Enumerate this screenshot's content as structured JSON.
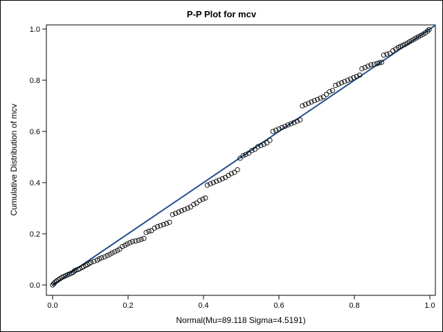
{
  "chart_data": {
    "type": "scatter",
    "title": "P-P Plot for mcv",
    "xlabel": "Normal(Mu=89.118 Sigma=4.5191)",
    "ylabel": "Cumulative Distribution of mcv",
    "xlim": [
      0,
      1
    ],
    "ylim": [
      0,
      1
    ],
    "x_ticks": [
      "0.0",
      "0.2",
      "0.4",
      "0.6",
      "0.8",
      "1.0"
    ],
    "y_ticks": [
      "0.0",
      "0.2",
      "0.4",
      "0.6",
      "0.8",
      "1.0"
    ],
    "grid": false,
    "legend": "none",
    "reference_line": {
      "from": [
        0,
        0
      ],
      "to": [
        1,
        1
      ],
      "color": "#1f4e8c"
    },
    "marker": {
      "shape": "open-circle",
      "color": "#000000"
    },
    "series": [
      {
        "points": [
          [
            0.0,
            0.0
          ],
          [
            0.003,
            0.005
          ],
          [
            0.006,
            0.01
          ],
          [
            0.01,
            0.015
          ],
          [
            0.015,
            0.02
          ],
          [
            0.02,
            0.025
          ],
          [
            0.025,
            0.03
          ],
          [
            0.03,
            0.033
          ],
          [
            0.035,
            0.036
          ],
          [
            0.04,
            0.04
          ],
          [
            0.045,
            0.043
          ],
          [
            0.05,
            0.046
          ],
          [
            0.055,
            0.05
          ],
          [
            0.058,
            0.055
          ],
          [
            0.062,
            0.058
          ],
          [
            0.068,
            0.061
          ],
          [
            0.072,
            0.064
          ],
          [
            0.078,
            0.068
          ],
          [
            0.082,
            0.072
          ],
          [
            0.088,
            0.076
          ],
          [
            0.092,
            0.08
          ],
          [
            0.097,
            0.084
          ],
          [
            0.102,
            0.088
          ],
          [
            0.11,
            0.092
          ],
          [
            0.118,
            0.097
          ],
          [
            0.124,
            0.102
          ],
          [
            0.13,
            0.106
          ],
          [
            0.138,
            0.11
          ],
          [
            0.145,
            0.115
          ],
          [
            0.152,
            0.12
          ],
          [
            0.158,
            0.125
          ],
          [
            0.165,
            0.13
          ],
          [
            0.172,
            0.135
          ],
          [
            0.178,
            0.14
          ],
          [
            0.185,
            0.15
          ],
          [
            0.192,
            0.155
          ],
          [
            0.198,
            0.16
          ],
          [
            0.205,
            0.165
          ],
          [
            0.212,
            0.17
          ],
          [
            0.22,
            0.172
          ],
          [
            0.228,
            0.175
          ],
          [
            0.235,
            0.178
          ],
          [
            0.242,
            0.182
          ],
          [
            0.248,
            0.205
          ],
          [
            0.255,
            0.21
          ],
          [
            0.262,
            0.212
          ],
          [
            0.27,
            0.222
          ],
          [
            0.278,
            0.228
          ],
          [
            0.286,
            0.232
          ],
          [
            0.294,
            0.236
          ],
          [
            0.302,
            0.24
          ],
          [
            0.31,
            0.245
          ],
          [
            0.318,
            0.275
          ],
          [
            0.326,
            0.28
          ],
          [
            0.334,
            0.285
          ],
          [
            0.342,
            0.29
          ],
          [
            0.35,
            0.295
          ],
          [
            0.358,
            0.3
          ],
          [
            0.366,
            0.305
          ],
          [
            0.374,
            0.315
          ],
          [
            0.382,
            0.32
          ],
          [
            0.39,
            0.33
          ],
          [
            0.398,
            0.335
          ],
          [
            0.405,
            0.34
          ],
          [
            0.41,
            0.39
          ],
          [
            0.418,
            0.395
          ],
          [
            0.426,
            0.4
          ],
          [
            0.434,
            0.405
          ],
          [
            0.442,
            0.41
          ],
          [
            0.45,
            0.415
          ],
          [
            0.458,
            0.42
          ],
          [
            0.466,
            0.428
          ],
          [
            0.474,
            0.435
          ],
          [
            0.482,
            0.44
          ],
          [
            0.49,
            0.45
          ],
          [
            0.497,
            0.495
          ],
          [
            0.505,
            0.505
          ],
          [
            0.512,
            0.51
          ],
          [
            0.52,
            0.515
          ],
          [
            0.528,
            0.525
          ],
          [
            0.536,
            0.53
          ],
          [
            0.544,
            0.54
          ],
          [
            0.552,
            0.545
          ],
          [
            0.56,
            0.55
          ],
          [
            0.568,
            0.555
          ],
          [
            0.576,
            0.565
          ],
          [
            0.584,
            0.6
          ],
          [
            0.592,
            0.605
          ],
          [
            0.6,
            0.61
          ],
          [
            0.608,
            0.615
          ],
          [
            0.616,
            0.62
          ],
          [
            0.624,
            0.625
          ],
          [
            0.632,
            0.63
          ],
          [
            0.64,
            0.635
          ],
          [
            0.648,
            0.64
          ],
          [
            0.656,
            0.645
          ],
          [
            0.662,
            0.7
          ],
          [
            0.67,
            0.705
          ],
          [
            0.678,
            0.71
          ],
          [
            0.686,
            0.715
          ],
          [
            0.694,
            0.72
          ],
          [
            0.702,
            0.725
          ],
          [
            0.71,
            0.73
          ],
          [
            0.718,
            0.735
          ],
          [
            0.726,
            0.745
          ],
          [
            0.734,
            0.755
          ],
          [
            0.742,
            0.76
          ],
          [
            0.75,
            0.78
          ],
          [
            0.758,
            0.785
          ],
          [
            0.766,
            0.79
          ],
          [
            0.774,
            0.795
          ],
          [
            0.782,
            0.8
          ],
          [
            0.79,
            0.805
          ],
          [
            0.798,
            0.81
          ],
          [
            0.806,
            0.815
          ],
          [
            0.814,
            0.82
          ],
          [
            0.82,
            0.845
          ],
          [
            0.828,
            0.85
          ],
          [
            0.836,
            0.855
          ],
          [
            0.844,
            0.86
          ],
          [
            0.852,
            0.862
          ],
          [
            0.86,
            0.865
          ],
          [
            0.866,
            0.868
          ],
          [
            0.872,
            0.87
          ],
          [
            0.878,
            0.898
          ],
          [
            0.886,
            0.902
          ],
          [
            0.894,
            0.905
          ],
          [
            0.902,
            0.915
          ],
          [
            0.91,
            0.922
          ],
          [
            0.916,
            0.928
          ],
          [
            0.922,
            0.932
          ],
          [
            0.928,
            0.936
          ],
          [
            0.934,
            0.94
          ],
          [
            0.94,
            0.945
          ],
          [
            0.946,
            0.95
          ],
          [
            0.952,
            0.955
          ],
          [
            0.958,
            0.96
          ],
          [
            0.964,
            0.965
          ],
          [
            0.97,
            0.97
          ],
          [
            0.976,
            0.975
          ],
          [
            0.982,
            0.98
          ],
          [
            0.988,
            0.985
          ],
          [
            0.994,
            0.992
          ],
          [
            0.998,
            0.998
          ]
        ]
      }
    ]
  }
}
